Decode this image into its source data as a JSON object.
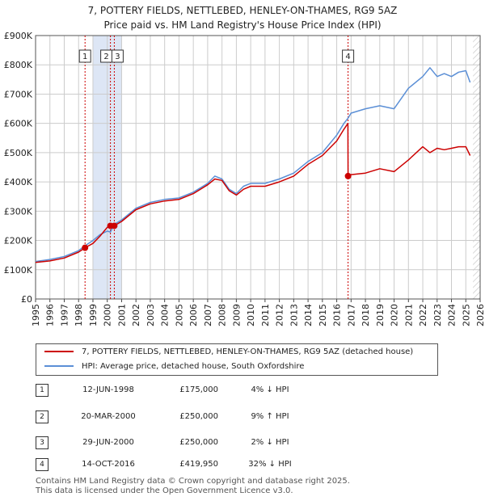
{
  "title": {
    "line1": "7, POTTERY FIELDS, NETTLEBED, HENLEY-ON-THAMES, RG9 5AZ",
    "line2": "Price paid vs. HM Land Registry's House Price Index (HPI)"
  },
  "legend": {
    "property_label": "7, POTTERY FIELDS, NETTLEBED, HENLEY-ON-THAMES, RG9 5AZ (detached house)",
    "hpi_label": "HPI: Average price, detached house, South Oxfordshire"
  },
  "transactions": [
    {
      "num": "1",
      "date": "12-JUN-1998",
      "price": "£175,000",
      "hpi": "4% ↓ HPI"
    },
    {
      "num": "2",
      "date": "20-MAR-2000",
      "price": "£250,000",
      "hpi": "9% ↑ HPI"
    },
    {
      "num": "3",
      "date": "29-JUN-2000",
      "price": "£250,000",
      "hpi": "2% ↓ HPI"
    },
    {
      "num": "4",
      "date": "14-OCT-2016",
      "price": "£419,950",
      "hpi": "32% ↓ HPI"
    }
  ],
  "footer": {
    "line1": "Contains HM Land Registry data © Crown copyright and database right 2025.",
    "line2": "This data is licensed under the Open Government Licence v3.0."
  },
  "colors": {
    "property": "#cc0000",
    "hpi": "#5b8fd6",
    "highlight": "#dde6f5",
    "hatch": "#cccccc",
    "grid": "#cccccc"
  },
  "chart_data": {
    "type": "line",
    "xlim": [
      1995,
      2026
    ],
    "ylim": [
      0,
      900000
    ],
    "x_ticks": [
      1995,
      1996,
      1997,
      1998,
      1999,
      2000,
      2001,
      2002,
      2003,
      2004,
      2005,
      2006,
      2007,
      2008,
      2009,
      2010,
      2011,
      2012,
      2013,
      2014,
      2015,
      2016,
      2017,
      2018,
      2019,
      2020,
      2021,
      2022,
      2023,
      2024,
      2025,
      2026
    ],
    "y_ticks": [
      {
        "value": 0,
        "label": "£0"
      },
      {
        "value": 100000,
        "label": "£100K"
      },
      {
        "value": 200000,
        "label": "£200K"
      },
      {
        "value": 300000,
        "label": "£300K"
      },
      {
        "value": 400000,
        "label": "£400K"
      },
      {
        "value": 500000,
        "label": "£500K"
      },
      {
        "value": 600000,
        "label": "£600K"
      },
      {
        "value": 700000,
        "label": "£700K"
      },
      {
        "value": 800000,
        "label": "£800K"
      },
      {
        "value": 900000,
        "label": "£900K"
      }
    ],
    "highlight_span": [
      1999.0,
      2001.0
    ],
    "hatch_from": 2025.5,
    "series": [
      {
        "name": "7, POTTERY FIELDS, NETTLEBED, HENLEY-ON-THAMES, RG9 5AZ (detached house)",
        "x": [
          1995.0,
          1996.0,
          1997.0,
          1998.0,
          1998.45,
          1999.0,
          1999.5,
          2000.0,
          2000.22,
          2000.49,
          2001.0,
          2002.0,
          2003.0,
          2004.0,
          2005.0,
          2006.0,
          2007.0,
          2007.5,
          2008.0,
          2008.5,
          2009.0,
          2009.5,
          2010.0,
          2011.0,
          2012.0,
          2013.0,
          2014.0,
          2015.0,
          2016.0,
          2016.5,
          2016.78,
          2016.79,
          2017.0,
          2018.0,
          2019.0,
          2020.0,
          2021.0,
          2022.0,
          2022.5,
          2023.0,
          2023.5,
          2024.0,
          2024.5,
          2025.0,
          2025.3
        ],
        "y": [
          125000,
          130000,
          140000,
          160000,
          175000,
          190000,
          215000,
          245000,
          250000,
          250000,
          265000,
          305000,
          325000,
          335000,
          340000,
          360000,
          390000,
          410000,
          405000,
          370000,
          355000,
          375000,
          385000,
          385000,
          400000,
          420000,
          460000,
          490000,
          540000,
          580000,
          600000,
          419950,
          425000,
          430000,
          445000,
          435000,
          475000,
          520000,
          500000,
          515000,
          510000,
          515000,
          520000,
          520000,
          490000
        ]
      },
      {
        "name": "HPI: Average price, detached house, South Oxfordshire",
        "x": [
          1995.0,
          1996.0,
          1997.0,
          1998.0,
          1998.45,
          1999.0,
          1999.5,
          2000.0,
          2000.22,
          2000.49,
          2001.0,
          2002.0,
          2003.0,
          2004.0,
          2005.0,
          2006.0,
          2007.0,
          2007.5,
          2008.0,
          2008.5,
          2009.0,
          2009.5,
          2010.0,
          2011.0,
          2012.0,
          2013.0,
          2014.0,
          2015.0,
          2016.0,
          2016.5,
          2016.78,
          2017.0,
          2018.0,
          2019.0,
          2020.0,
          2021.0,
          2022.0,
          2022.5,
          2023.0,
          2023.5,
          2024.0,
          2024.5,
          2025.0,
          2025.3
        ],
        "y": [
          128000,
          135000,
          145000,
          165000,
          182000,
          200000,
          220000,
          232000,
          229000,
          255000,
          270000,
          310000,
          330000,
          340000,
          345000,
          365000,
          395000,
          420000,
          410000,
          375000,
          360000,
          385000,
          395000,
          395000,
          410000,
          430000,
          470000,
          500000,
          560000,
          600000,
          617000,
          635000,
          650000,
          660000,
          650000,
          720000,
          760000,
          790000,
          760000,
          770000,
          760000,
          775000,
          780000,
          740000
        ]
      }
    ],
    "markers": [
      {
        "num": "1",
        "x": 1998.45,
        "y": 175000
      },
      {
        "num": "2",
        "x": 2000.22,
        "y": 250000
      },
      {
        "num": "3",
        "x": 2000.49,
        "y": 250000
      },
      {
        "num": "4",
        "x": 2016.79,
        "y": 419950
      }
    ]
  }
}
